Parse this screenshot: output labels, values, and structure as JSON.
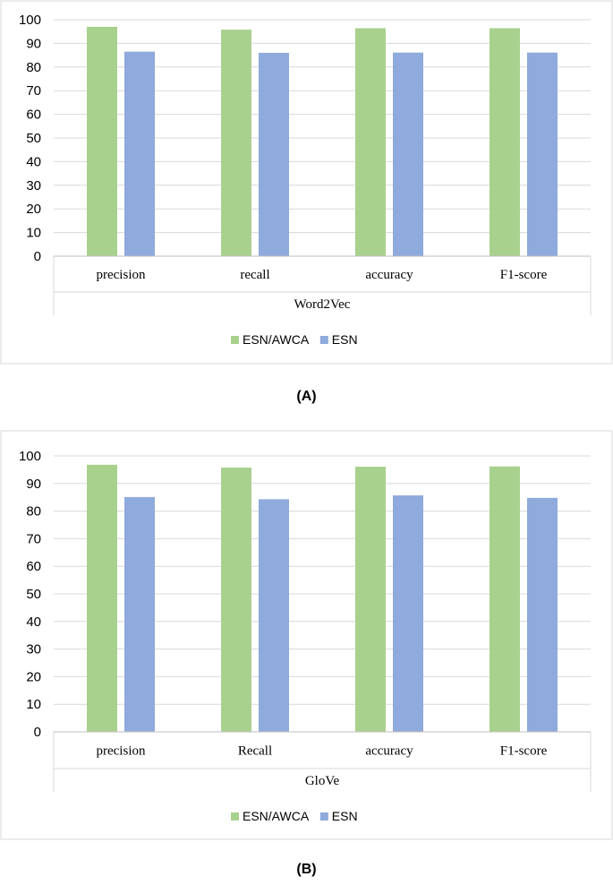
{
  "chart_data": [
    {
      "type": "bar",
      "panel_label": "(A)",
      "group_label": "Word2Vec",
      "categories": [
        "precision",
        "recall",
        "accuracy",
        "F1-score"
      ],
      "series": [
        {
          "name": "ESN/AWCA",
          "color": "#a9d18e",
          "values": [
            97.0,
            95.8,
            96.4,
            96.4
          ]
        },
        {
          "name": "ESN",
          "color": "#8faadc",
          "values": [
            86.5,
            86.0,
            86.1,
            86.1
          ]
        }
      ],
      "yticks": [
        "0",
        "10",
        "20",
        "30",
        "40",
        "50",
        "60",
        "70",
        "80",
        "90",
        "100"
      ],
      "ylim": [
        0,
        100
      ],
      "grid": true,
      "legend": "bottom-center"
    },
    {
      "type": "bar",
      "panel_label": "(B)",
      "group_label": "GloVe",
      "categories": [
        "precision",
        "Recall",
        "accuracy",
        "F1-score"
      ],
      "series": [
        {
          "name": "ESN/AWCA",
          "color": "#a9d18e",
          "values": [
            96.8,
            95.8,
            96.1,
            96.2
          ]
        },
        {
          "name": "ESN",
          "color": "#8faadc",
          "values": [
            85.1,
            84.3,
            85.7,
            84.8
          ]
        }
      ],
      "yticks": [
        "0",
        "10",
        "20",
        "30",
        "40",
        "50",
        "60",
        "70",
        "80",
        "90",
        "100"
      ],
      "ylim": [
        0,
        100
      ],
      "grid": true,
      "legend": "bottom-center"
    }
  ]
}
